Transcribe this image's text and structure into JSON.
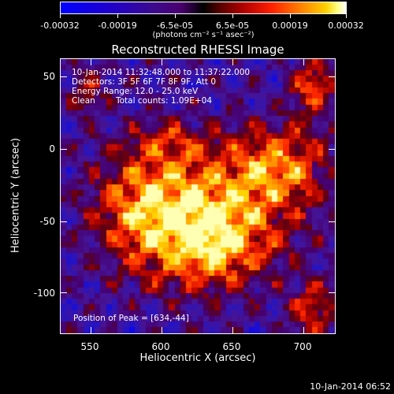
{
  "colorbar": {
    "tick_labels": [
      "-0.00032",
      "-0.00019",
      "-6.5e-05",
      "6.5e-05",
      "0.00019",
      "0.00032"
    ],
    "units_label": "(photons cm⁻² s⁻¹ asec⁻²)",
    "range": [
      -0.00032,
      0.00032
    ]
  },
  "title": "Reconstructed RHESSI Image",
  "info": {
    "time": "10-Jan-2014 11:32:48.000 to 11:37:22.000",
    "detectors": "Detectors: 3F 5F 6F 7F 8F 9F, Att 0",
    "energy": "Energy Range: 12.0 - 25.0 keV",
    "clean": "Clean",
    "counts": "Total counts: 1.09E+04"
  },
  "peak_label": "Position of Peak = [634,-44]",
  "axes": {
    "xlabel": "Heliocentric X (arcsec)",
    "ylabel": "Heliocentric Y (arcsec)",
    "x_ticks": [
      "550",
      "600",
      "650",
      "700"
    ],
    "y_ticks": [
      "50",
      "0",
      "-50",
      "-100"
    ],
    "xlim": [
      528,
      722
    ],
    "ylim": [
      -129,
      65
    ]
  },
  "timestamp": "10-Jan-2014 06:52",
  "colors": {
    "background": "#000000",
    "text": "#ffffff"
  }
}
